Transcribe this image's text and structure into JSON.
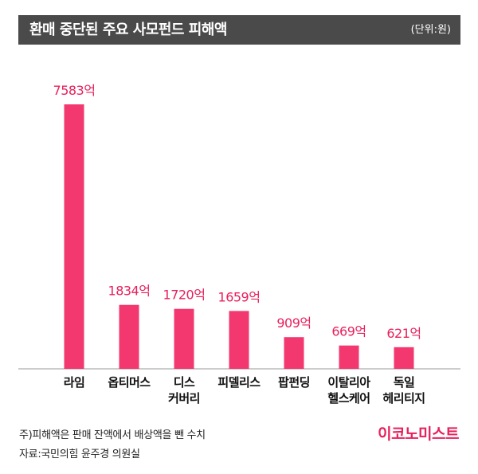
{
  "header": {
    "title": "환매 중단된 주요 사모펀드 피해액",
    "unit": "(단위:원)"
  },
  "colors": {
    "bar": "#f2386f",
    "value_label": "#e8205c",
    "header_bg": "#4a4a4a",
    "brand": "#e8205c"
  },
  "chart_data": {
    "type": "bar",
    "categories": [
      [
        "라임"
      ],
      [
        "옵티머스"
      ],
      [
        "디스",
        "커버리"
      ],
      [
        "피델리스"
      ],
      [
        "팝펀딩"
      ],
      [
        "이탈리아",
        "헬스케어"
      ],
      [
        "독일",
        "헤리티지"
      ]
    ],
    "values": [
      7583,
      1834,
      1720,
      1659,
      909,
      669,
      621
    ],
    "value_labels": [
      "7583억",
      "1834억",
      "1720억",
      "1659억",
      "909억",
      "669억",
      "621억"
    ],
    "title": "환매 중단된 주요 사모펀드 피해액",
    "unit": "(단위:원)",
    "xlabel": "",
    "ylabel": "",
    "ylim": [
      0,
      7583
    ],
    "grid": false
  },
  "footer": {
    "note": "주)피해액은 판매 잔액에서 배상액을 뺀 수치",
    "source": "자료:국민의힘 윤주경 의원실",
    "brand": "이코노미스트"
  }
}
